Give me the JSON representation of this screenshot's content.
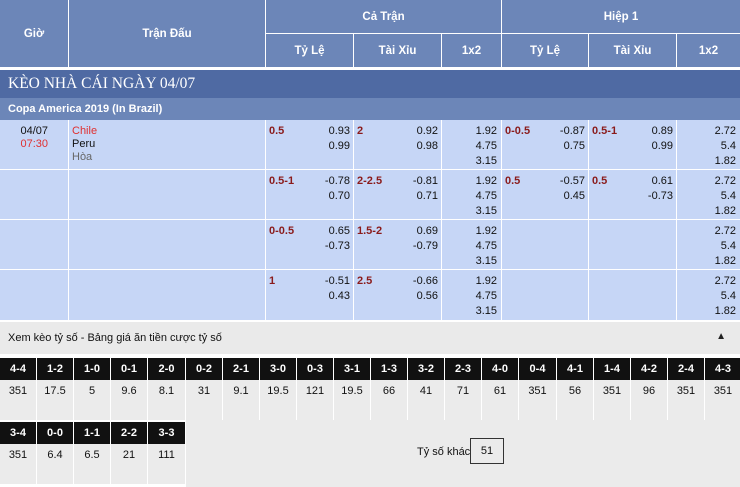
{
  "header": {
    "gio": "Giờ",
    "tran_dau": "Trận Đấu",
    "ca_tran": "Cả Trận",
    "hiep1": "Hiệp 1",
    "ty_le": "Tỷ Lệ",
    "tai_xiu": "Tài Xỉu",
    "onex2": "1x2"
  },
  "title": "KÈO NHÀ CÁI NGÀY 04/07",
  "league": "Copa America 2019 (In Brazil)",
  "match": {
    "date": "04/07",
    "time": "07:30",
    "home": "Chile",
    "away": "Peru",
    "draw": "Hòa"
  },
  "rows": [
    {
      "ft_hdp": "0.5",
      "ft_hdp_1": "0.93",
      "ft_hdp_2": "0.99",
      "ft_ou": "2",
      "ft_ou_1": "0.92",
      "ft_ou_2": "0.98",
      "ft_1": "1.92",
      "ft_x": "4.75",
      "ft_2": "3.15",
      "h1_hdp": "0-0.5",
      "h1_hdp_1": "-0.87",
      "h1_hdp_2": "0.75",
      "h1_ou": "0.5-1",
      "h1_ou_1": "0.89",
      "h1_ou_2": "0.99",
      "h1_1": "2.72",
      "h1_x": "5.4",
      "h1_2": "1.82"
    },
    {
      "ft_hdp": "0.5-1",
      "ft_hdp_1": "-0.78",
      "ft_hdp_2": "0.70",
      "ft_ou": "2-2.5",
      "ft_ou_1": "-0.81",
      "ft_ou_2": "0.71",
      "ft_1": "1.92",
      "ft_x": "4.75",
      "ft_2": "3.15",
      "h1_hdp": "0.5",
      "h1_hdp_1": "-0.57",
      "h1_hdp_2": "0.45",
      "h1_ou": "0.5",
      "h1_ou_1": "0.61",
      "h1_ou_2": "-0.73",
      "h1_1": "2.72",
      "h1_x": "5.4",
      "h1_2": "1.82"
    },
    {
      "ft_hdp": "0-0.5",
      "ft_hdp_1": "0.65",
      "ft_hdp_2": "-0.73",
      "ft_ou": "1.5-2",
      "ft_ou_1": "0.69",
      "ft_ou_2": "-0.79",
      "ft_1": "1.92",
      "ft_x": "4.75",
      "ft_2": "3.15",
      "h1_hdp": "",
      "h1_hdp_1": "",
      "h1_hdp_2": "",
      "h1_ou": "",
      "h1_ou_1": "",
      "h1_ou_2": "",
      "h1_1": "2.72",
      "h1_x": "5.4",
      "h1_2": "1.82"
    },
    {
      "ft_hdp": "1",
      "ft_hdp_1": "-0.51",
      "ft_hdp_2": "0.43",
      "ft_ou": "2.5",
      "ft_ou_1": "-0.66",
      "ft_ou_2": "0.56",
      "ft_1": "1.92",
      "ft_x": "4.75",
      "ft_2": "3.15",
      "h1_hdp": "",
      "h1_hdp_1": "",
      "h1_hdp_2": "",
      "h1_ou": "",
      "h1_ou_1": "",
      "h1_ou_2": "",
      "h1_1": "2.72",
      "h1_x": "5.4",
      "h1_2": "1.82"
    }
  ],
  "score_section": {
    "title": "Xem kèo tỷ số - Bảng giá ăn tiền cược tỷ số",
    "toggle_icon": "caret-up-icon",
    "row1": [
      {
        "score": "4-4",
        "odds": "351"
      },
      {
        "score": "1-2",
        "odds": "17.5"
      },
      {
        "score": "1-0",
        "odds": "5"
      },
      {
        "score": "0-1",
        "odds": "9.6"
      },
      {
        "score": "2-0",
        "odds": "8.1"
      },
      {
        "score": "0-2",
        "odds": "31"
      },
      {
        "score": "2-1",
        "odds": "9.1"
      },
      {
        "score": "3-0",
        "odds": "19.5"
      },
      {
        "score": "0-3",
        "odds": "121"
      },
      {
        "score": "3-1",
        "odds": "19.5"
      },
      {
        "score": "1-3",
        "odds": "66"
      },
      {
        "score": "3-2",
        "odds": "41"
      },
      {
        "score": "2-3",
        "odds": "71"
      },
      {
        "score": "4-0",
        "odds": "61"
      },
      {
        "score": "0-4",
        "odds": "351"
      },
      {
        "score": "4-1",
        "odds": "56"
      },
      {
        "score": "1-4",
        "odds": "351"
      },
      {
        "score": "4-2",
        "odds": "96"
      },
      {
        "score": "2-4",
        "odds": "351"
      },
      {
        "score": "4-3",
        "odds": "351"
      }
    ],
    "row2": [
      {
        "score": "3-4",
        "odds": "351"
      },
      {
        "score": "0-0",
        "odds": "6.4"
      },
      {
        "score": "1-1",
        "odds": "6.5"
      },
      {
        "score": "2-2",
        "odds": "21"
      },
      {
        "score": "3-3",
        "odds": "111"
      }
    ],
    "other_label": "Tỷ số khác",
    "other_value": "51"
  }
}
